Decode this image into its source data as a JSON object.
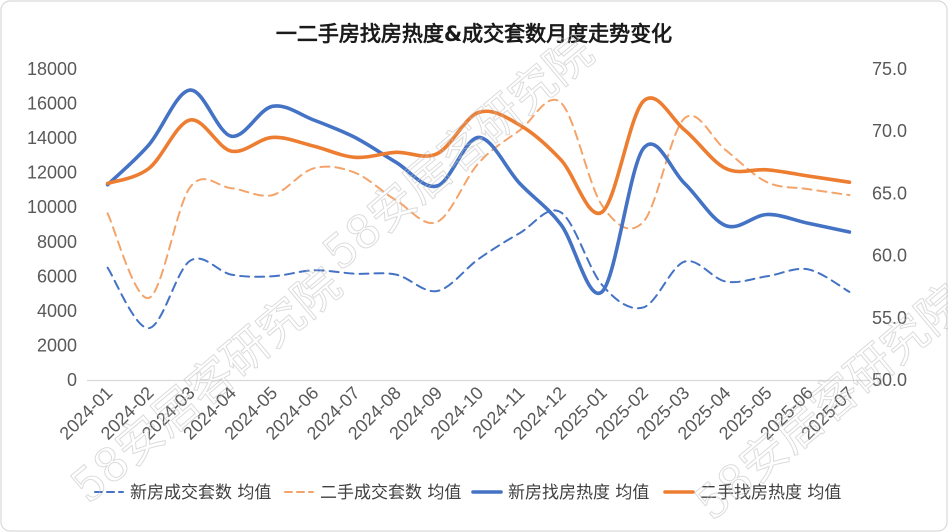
{
  "chart_data": {
    "type": "line",
    "title": "一二手房找房热度&成交套数月度走势变化",
    "categories": [
      "2024-01",
      "2024-02",
      "2024-03",
      "2024-04",
      "2024-05",
      "2024-06",
      "2024-07",
      "2024-08",
      "2024-09",
      "2024-10",
      "2024-11",
      "2024-12",
      "2025-01",
      "2025-02",
      "2025-03",
      "2025-04",
      "2025-05",
      "2025-06",
      "2025-07"
    ],
    "y_left": {
      "ylim": [
        0,
        18000
      ],
      "ticks": [
        "18000",
        "16000",
        "14000",
        "12000",
        "10000",
        "8000",
        "6000",
        "4000",
        "2000",
        "0"
      ]
    },
    "y_right": {
      "ylim": [
        50,
        75
      ],
      "ticks": [
        "75.0",
        "70.0",
        "65.0",
        "60.0",
        "55.0",
        "50.0"
      ]
    },
    "grid": false,
    "series": [
      {
        "name": "新房成交套数 均值",
        "color": "#4472C4",
        "dashed": true,
        "secondary_axis": false,
        "values": [
          6500,
          3000,
          6900,
          6100,
          6000,
          6350,
          6150,
          6100,
          5150,
          7000,
          8500,
          9700,
          5500,
          4200,
          6850,
          5700,
          6000,
          6400,
          5100
        ]
      },
      {
        "name": "二手成交套数 均值",
        "color": "#F4A46A",
        "dashed": true,
        "secondary_axis": false,
        "values": [
          9650,
          4750,
          11150,
          11100,
          10700,
          12250,
          12000,
          10400,
          9150,
          12550,
          14450,
          16050,
          10100,
          9150,
          15150,
          13300,
          11450,
          11050,
          10700
        ]
      },
      {
        "name": "新房找房热度 均值",
        "color": "#4472C4",
        "dashed": false,
        "secondary_axis": true,
        "values": [
          65.7,
          68.9,
          73.3,
          69.6,
          72.0,
          70.9,
          69.5,
          67.5,
          65.6,
          69.5,
          65.8,
          62.5,
          57.1,
          68.6,
          65.8,
          62.4,
          63.3,
          62.6,
          61.9
        ]
      },
      {
        "name": "二手找房热度 均值",
        "color": "#ED7D31",
        "dashed": false,
        "secondary_axis": true,
        "values": [
          65.8,
          67.0,
          70.9,
          68.4,
          69.5,
          68.8,
          67.9,
          68.3,
          68.2,
          71.5,
          70.5,
          67.7,
          63.5,
          72.4,
          70.1,
          67.0,
          66.9,
          66.4,
          65.9
        ]
      }
    ]
  },
  "watermark": "58安居客研究院"
}
